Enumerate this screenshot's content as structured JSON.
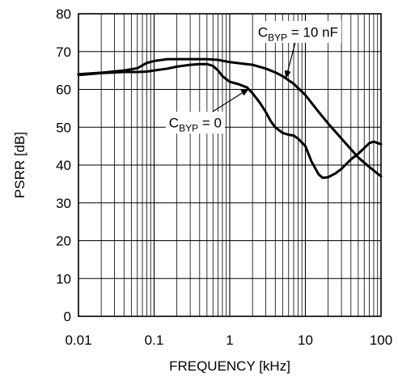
{
  "chart_data": {
    "type": "line",
    "title": "",
    "xlabel": "FREQUENCY [kHz]",
    "ylabel": "PSRR [dB]",
    "xscale": "log",
    "xlim": [
      0.01,
      100
    ],
    "ylim": [
      0,
      80
    ],
    "grid": true,
    "x_ticks": [
      0.01,
      0.1,
      1,
      10,
      100
    ],
    "x_tick_labels": [
      "0.01",
      "0.1",
      "1",
      "10",
      "100"
    ],
    "y_ticks": [
      0,
      10,
      20,
      30,
      40,
      50,
      60,
      70,
      80
    ],
    "y_tick_labels": [
      "0",
      "10",
      "20",
      "30",
      "40",
      "50",
      "60",
      "70",
      "80"
    ],
    "series": [
      {
        "name": "CBYP = 10 nF",
        "x": [
          0.01,
          0.02,
          0.04,
          0.06,
          0.08,
          0.1,
          0.15,
          0.2,
          0.3,
          0.5,
          0.7,
          1,
          1.5,
          2,
          3,
          4,
          5,
          7,
          10,
          15,
          20,
          30,
          50,
          70,
          100
        ],
        "y": [
          64,
          64.4,
          65,
          65.6,
          67,
          67.5,
          68,
          68,
          68,
          68,
          67.8,
          67.2,
          66.8,
          66.5,
          65.5,
          64.5,
          63.5,
          61.5,
          58.5,
          54,
          51,
          47,
          42,
          39.5,
          37
        ]
      },
      {
        "name": "CBYP = 0",
        "x": [
          0.01,
          0.02,
          0.04,
          0.06,
          0.08,
          0.1,
          0.15,
          0.2,
          0.3,
          0.4,
          0.5,
          0.6,
          0.7,
          0.8,
          1,
          1.3,
          1.7,
          2,
          2.5,
          3,
          3.5,
          4,
          5,
          6,
          7,
          8,
          10,
          12,
          15,
          17,
          20,
          25,
          30,
          40,
          50,
          60,
          70,
          80,
          100
        ],
        "y": [
          63.8,
          64.3,
          64.6,
          64.6,
          64.7,
          65,
          65.5,
          66,
          66.5,
          66.7,
          66.7,
          66.2,
          65,
          63.5,
          62,
          61.4,
          60.5,
          59,
          56.5,
          54,
          51.5,
          50,
          48.5,
          48,
          47.8,
          47,
          45,
          41,
          37.5,
          36.6,
          36.8,
          37.8,
          39,
          41.5,
          43,
          44.5,
          45.8,
          46.2,
          45.5
        ]
      }
    ],
    "annotations": [
      {
        "base": "C",
        "sub": "BYP",
        "rest": " = 10 nF",
        "series": "CBYP = 10 nF",
        "arrow_x": 5.5,
        "arrow_y": 62.8,
        "label_x": 8,
        "label_y": 75.2
      },
      {
        "base": "C",
        "sub": "BYP",
        "rest": " = 0",
        "series": "CBYP = 0",
        "arrow_x": 1.8,
        "arrow_y": 60.2,
        "label_x": 0.35,
        "label_y": 51.2
      }
    ],
    "colors": {
      "line": "#000000",
      "grid": "#000000",
      "background": "#ffffff"
    }
  }
}
